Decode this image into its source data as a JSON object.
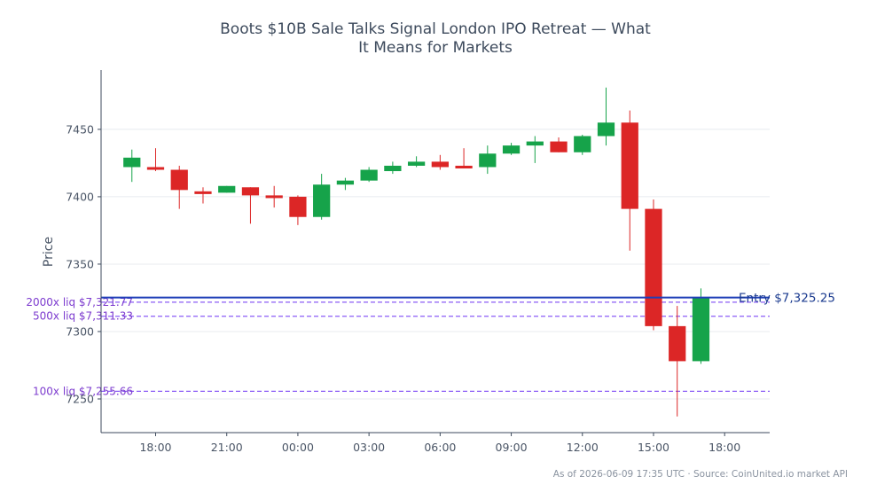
{
  "chart_data": {
    "type": "candlestick",
    "title_lines": [
      "Boots $10B Sale Talks Signal London IPO Retreat — What",
      "It Means for Markets"
    ],
    "ylabel": "Price",
    "xlabel": "",
    "ylim": [
      7225,
      7494
    ],
    "yticks": [
      7250,
      7300,
      7350,
      7400,
      7450
    ],
    "xlim": [
      -1.3,
      26.9
    ],
    "xticks": [
      {
        "index": 1,
        "label": "18:00"
      },
      {
        "index": 4,
        "label": "21:00"
      },
      {
        "index": 7,
        "label": "00:00"
      },
      {
        "index": 10,
        "label": "03:00"
      },
      {
        "index": 13,
        "label": "06:00"
      },
      {
        "index": 16,
        "label": "09:00"
      },
      {
        "index": 19,
        "label": "12:00"
      },
      {
        "index": 22,
        "label": "15:00"
      },
      {
        "index": 25,
        "label": "18:00"
      }
    ],
    "grid": true,
    "up_color": "#16a34a",
    "down_color": "#dc2626",
    "candles": [
      {
        "o": 7422,
        "h": 7435,
        "l": 7411,
        "c": 7429
      },
      {
        "o": 7422,
        "h": 7436,
        "l": 7419,
        "c": 7420
      },
      {
        "o": 7420,
        "h": 7423,
        "l": 7391,
        "c": 7405
      },
      {
        "o": 7404,
        "h": 7407,
        "l": 7395,
        "c": 7402
      },
      {
        "o": 7403,
        "h": 7408,
        "l": 7403,
        "c": 7408
      },
      {
        "o": 7407,
        "h": 7407,
        "l": 7380,
        "c": 7401
      },
      {
        "o": 7401,
        "h": 7408,
        "l": 7392,
        "c": 7399
      },
      {
        "o": 7400,
        "h": 7401,
        "l": 7379,
        "c": 7385
      },
      {
        "o": 7385,
        "h": 7417,
        "l": 7383,
        "c": 7409
      },
      {
        "o": 7409,
        "h": 7414,
        "l": 7405,
        "c": 7412
      },
      {
        "o": 7412,
        "h": 7422,
        "l": 7411,
        "c": 7420
      },
      {
        "o": 7419,
        "h": 7426,
        "l": 7417,
        "c": 7423
      },
      {
        "o": 7423,
        "h": 7430,
        "l": 7422,
        "c": 7426
      },
      {
        "o": 7426,
        "h": 7431,
        "l": 7420,
        "c": 7422
      },
      {
        "o": 7423,
        "h": 7436,
        "l": 7421,
        "c": 7421
      },
      {
        "o": 7422,
        "h": 7438,
        "l": 7417,
        "c": 7432
      },
      {
        "o": 7432,
        "h": 7440,
        "l": 7431,
        "c": 7438
      },
      {
        "o": 7438,
        "h": 7445,
        "l": 7425,
        "c": 7441
      },
      {
        "o": 7441,
        "h": 7444,
        "l": 7433,
        "c": 7433
      },
      {
        "o": 7433,
        "h": 7446,
        "l": 7431,
        "c": 7445
      },
      {
        "o": 7445,
        "h": 7481,
        "l": 7438,
        "c": 7455
      },
      {
        "o": 7455,
        "h": 7464,
        "l": 7360,
        "c": 7391
      },
      {
        "o": 7391,
        "h": 7398,
        "l": 7301,
        "c": 7304
      },
      {
        "o": 7304,
        "h": 7319,
        "l": 7237,
        "c": 7278
      },
      {
        "o": 7278,
        "h": 7332,
        "l": 7276,
        "c": 7325
      }
    ],
    "entry": {
      "value": 7325.25,
      "label": "Entry $7,325.25",
      "color": "#1f3fb8"
    },
    "liq_lines": [
      {
        "value": 7321.77,
        "label": "2000x liq $7,321.77"
      },
      {
        "value": 7311.33,
        "label": "500x liq $7,311.33"
      },
      {
        "value": 7255.66,
        "label": "100x liq $7,255.66"
      }
    ],
    "liq_color": "#8b5cf6"
  },
  "footer": "As of 2026-06-09 17:35 UTC · Source: CoinUnited.io market API"
}
